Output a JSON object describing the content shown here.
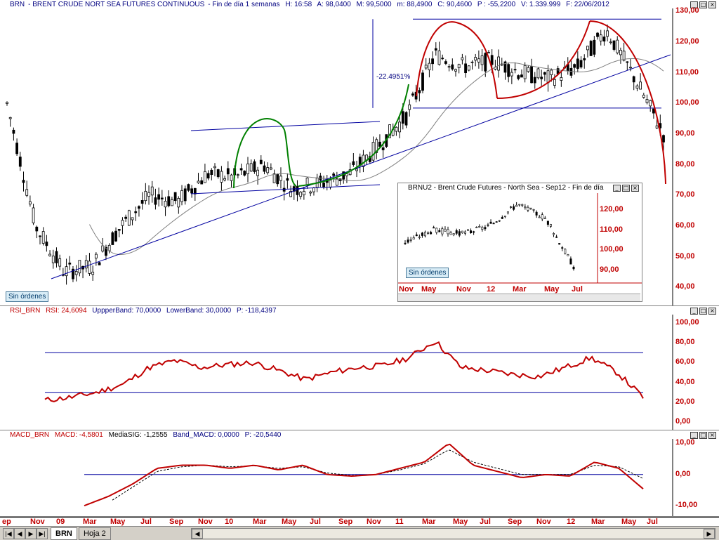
{
  "main": {
    "symbol": "BRN",
    "title": "BRENT CRUDE NORT SEA FUTURES CONTINUOUS",
    "period": "Fin de día 1 semanas",
    "stats": [
      "H: 16:58",
      "A: 98,0400",
      "M: 99,5000",
      "m: 88,4900",
      "C: 90,4600",
      "P : -55,2200",
      "V: 1.339.999",
      "F: 22/06/2012"
    ],
    "yticks": [
      "130,00",
      "120,00",
      "110,00",
      "100,00",
      "90,00",
      "80,00",
      "70,00",
      "60,00",
      "50,00",
      "40,00"
    ],
    "annotation": "-22.4951%",
    "orders_label": "Sin órdenes"
  },
  "inset": {
    "title": "BRNU2 - Brent Crude Futures - North Sea - Sep12 - Fin de día",
    "yticks": [
      "120,00",
      "110,00",
      "100,00",
      "90,00"
    ],
    "xticks": [
      "Nov",
      "May",
      "Nov",
      "12",
      "Mar",
      "May",
      "Jul"
    ],
    "orders_label": "Sin órdenes"
  },
  "rsi": {
    "title_parts": [
      "RSI_BRN",
      "RSI: 24,6094",
      "UppperBand: 70,0000",
      "LowerBand: 30,0000",
      "P: -118,4397"
    ],
    "yticks": [
      "100,00",
      "80,00",
      "60,00",
      "40,00",
      "20,00",
      "0,00"
    ]
  },
  "macd": {
    "title_parts": [
      "MACD_BRN",
      "MACD: -4,5801",
      "MediaSIG: -1,2555",
      "Band_MACD: 0,0000",
      "P: -20,5440"
    ],
    "yticks": [
      "10,00",
      "0,00",
      "-10,00"
    ]
  },
  "xaxis": [
    "ep",
    "Nov",
    "09",
    "Mar",
    "May",
    "Jul",
    "Sep",
    "Nov",
    "10",
    "Mar",
    "May",
    "Jul",
    "Sep",
    "Nov",
    "11",
    "Mar",
    "May",
    "Jul",
    "Sep",
    "Nov",
    "12",
    "Mar",
    "May",
    "Jul"
  ],
  "tabs": [
    "BRN",
    "Hoja 2"
  ],
  "window_buttons": [
    "_",
    "□",
    "×"
  ],
  "colors": {
    "price_axis": "#c00000",
    "candles": "#000000",
    "trend": "#0000a0",
    "rsi": "#c00000",
    "green_arc": "#008000",
    "red_arc": "#c00000"
  },
  "chart_data": [
    {
      "type": "candlestick",
      "title": "BRN - BRENT CRUDE NORT SEA FUTURES CONTINUOUS",
      "x": [
        "2008-09",
        "2008-11",
        "2009-01",
        "2009-03",
        "2009-05",
        "2009-07",
        "2009-09",
        "2009-11",
        "2010-01",
        "2010-03",
        "2010-05",
        "2010-07",
        "2010-09",
        "2010-11",
        "2011-01",
        "2011-03",
        "2011-05",
        "2011-07",
        "2011-09",
        "2011-11",
        "2012-01",
        "2012-03",
        "2012-05",
        "2012-06"
      ],
      "values": [
        100,
        60,
        45,
        47,
        60,
        70,
        68,
        77,
        76,
        80,
        72,
        74,
        77,
        86,
        96,
        116,
        112,
        114,
        110,
        108,
        112,
        124,
        108,
        90
      ],
      "ylim": [
        35,
        131
      ],
      "overlays": {
        "moving_average": true,
        "trendlines": true,
        "resistance": 127.5,
        "support": 98.5
      }
    },
    {
      "type": "candlestick",
      "title": "BRNU2 - Brent Crude Futures - North Sea - Sep12",
      "x": [
        "Nov",
        "May",
        "Nov",
        "12",
        "Mar",
        "May",
        "Jul"
      ],
      "values": [
        104,
        110,
        108,
        112,
        123,
        116,
        92
      ],
      "ylim": [
        85,
        127
      ]
    },
    {
      "type": "line",
      "title": "RSI_BRN",
      "x": [
        "2008-09",
        "2008-11",
        "2009-01",
        "2009-03",
        "2009-05",
        "2009-07",
        "2009-09",
        "2009-11",
        "2010-01",
        "2010-03",
        "2010-05",
        "2010-07",
        "2010-09",
        "2010-11",
        "2011-01",
        "2011-03",
        "2011-05",
        "2011-07",
        "2011-09",
        "2011-11",
        "2012-01",
        "2012-03",
        "2012-05",
        "2012-06"
      ],
      "series": [
        {
          "name": "RSI",
          "values": [
            22,
            25,
            30,
            38,
            55,
            62,
            55,
            58,
            60,
            52,
            43,
            50,
            55,
            57,
            65,
            82,
            55,
            52,
            48,
            46,
            55,
            65,
            50,
            25
          ]
        }
      ],
      "ylim": [
        0,
        100
      ],
      "bands": [
        70,
        30
      ]
    },
    {
      "type": "line",
      "title": "MACD_BRN",
      "x": [
        "2008-09",
        "2008-11",
        "2009-01",
        "2009-03",
        "2009-05",
        "2009-07",
        "2009-09",
        "2009-11",
        "2010-01",
        "2010-03",
        "2010-05",
        "2010-07",
        "2010-09",
        "2010-11",
        "2011-01",
        "2011-03",
        "2011-05",
        "2011-07",
        "2011-09",
        "2011-11",
        "2012-01",
        "2012-03",
        "2012-05",
        "2012-06"
      ],
      "series": [
        {
          "name": "MACD",
          "values": [
            -10,
            -7,
            -3,
            2,
            3,
            3,
            2,
            3,
            1.5,
            3,
            0,
            -0.5,
            0,
            2,
            4,
            10,
            3,
            1,
            -1,
            0,
            -0.5,
            4,
            2,
            -4.6
          ]
        },
        {
          "name": "MediaSIG",
          "values": [
            -12,
            -9,
            -4,
            1,
            2.5,
            3,
            2.5,
            2.8,
            2,
            2.5,
            0.5,
            -0.3,
            0,
            1.5,
            3.5,
            8,
            4,
            2,
            0,
            0,
            0,
            3,
            2.5,
            -1.3
          ]
        }
      ],
      "ylim": [
        -12,
        11
      ],
      "bands": [
        0
      ]
    }
  ]
}
